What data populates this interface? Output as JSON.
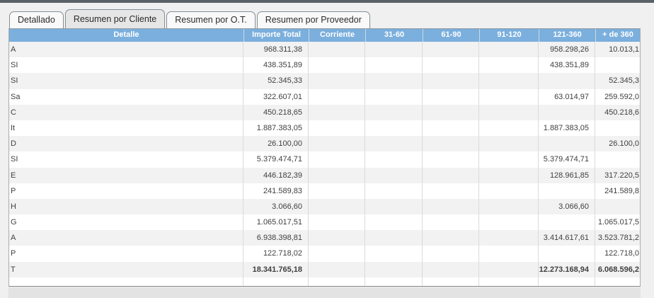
{
  "tabs": [
    {
      "label": "Detallado",
      "active": false
    },
    {
      "label": "Resumen por Cliente",
      "active": true
    },
    {
      "label": "Resumen por O.T.",
      "active": false
    },
    {
      "label": "Resumen por Proveedor",
      "active": false
    }
  ],
  "table": {
    "columns": [
      "Detalle",
      "Importe Total",
      "Corriente",
      "31-60",
      "61-90",
      "91-120",
      "121-360",
      "+ de 360"
    ],
    "rows": [
      {
        "cells": [
          "A",
          "968.311,38",
          "",
          "",
          "",
          "",
          "958.298,26",
          "10.013,1"
        ],
        "total": false
      },
      {
        "cells": [
          "SI",
          "438.351,89",
          "",
          "",
          "",
          "",
          "438.351,89",
          ""
        ],
        "total": false
      },
      {
        "cells": [
          "SI",
          "52.345,33",
          "",
          "",
          "",
          "",
          "",
          "52.345,3"
        ],
        "total": false
      },
      {
        "cells": [
          "Sa",
          "322.607,01",
          "",
          "",
          "",
          "",
          "63.014,97",
          "259.592,0"
        ],
        "total": false
      },
      {
        "cells": [
          "C",
          "450.218,65",
          "",
          "",
          "",
          "",
          "",
          "450.218,6"
        ],
        "total": false
      },
      {
        "cells": [
          "It",
          "1.887.383,05",
          "",
          "",
          "",
          "",
          "1.887.383,05",
          ""
        ],
        "total": false
      },
      {
        "cells": [
          "D",
          "26.100,00",
          "",
          "",
          "",
          "",
          "",
          "26.100,0"
        ],
        "total": false
      },
      {
        "cells": [
          "SI",
          "5.379.474,71",
          "",
          "",
          "",
          "",
          "5.379.474,71",
          ""
        ],
        "total": false
      },
      {
        "cells": [
          "E",
          "446.182,39",
          "",
          "",
          "",
          "",
          "128.961,85",
          "317.220,5"
        ],
        "total": false
      },
      {
        "cells": [
          "P",
          "241.589,83",
          "",
          "",
          "",
          "",
          "",
          "241.589,8"
        ],
        "total": false
      },
      {
        "cells": [
          "H",
          "3.066,60",
          "",
          "",
          "",
          "",
          "3.066,60",
          ""
        ],
        "total": false
      },
      {
        "cells": [
          "G",
          "1.065.017,51",
          "",
          "",
          "",
          "",
          "",
          "1.065.017,5"
        ],
        "total": false
      },
      {
        "cells": [
          "A",
          "6.938.398,81",
          "",
          "",
          "",
          "",
          "3.414.617,61",
          "3.523.781,2"
        ],
        "total": false
      },
      {
        "cells": [
          "P",
          "122.718,02",
          "",
          "",
          "",
          "",
          "",
          "122.718,0"
        ],
        "total": false
      },
      {
        "cells": [
          "T",
          "18.341.765,18",
          "",
          "",
          "",
          "",
          "12.273.168,94",
          "6.068.596,2"
        ],
        "total": true
      }
    ]
  },
  "colors": {
    "header_bg": "#7bafdd",
    "header_text": "#ffffff",
    "row_stripe": "#f2f2f2",
    "cell_text": "#404040",
    "tab_active_bg": "#e6e6e6",
    "tab_inactive_bg": "#f9f9f9",
    "panel_bg": "#f0f0f0",
    "top_strip": "#5a6167",
    "scrollbar_track": "#e3e3e3"
  }
}
